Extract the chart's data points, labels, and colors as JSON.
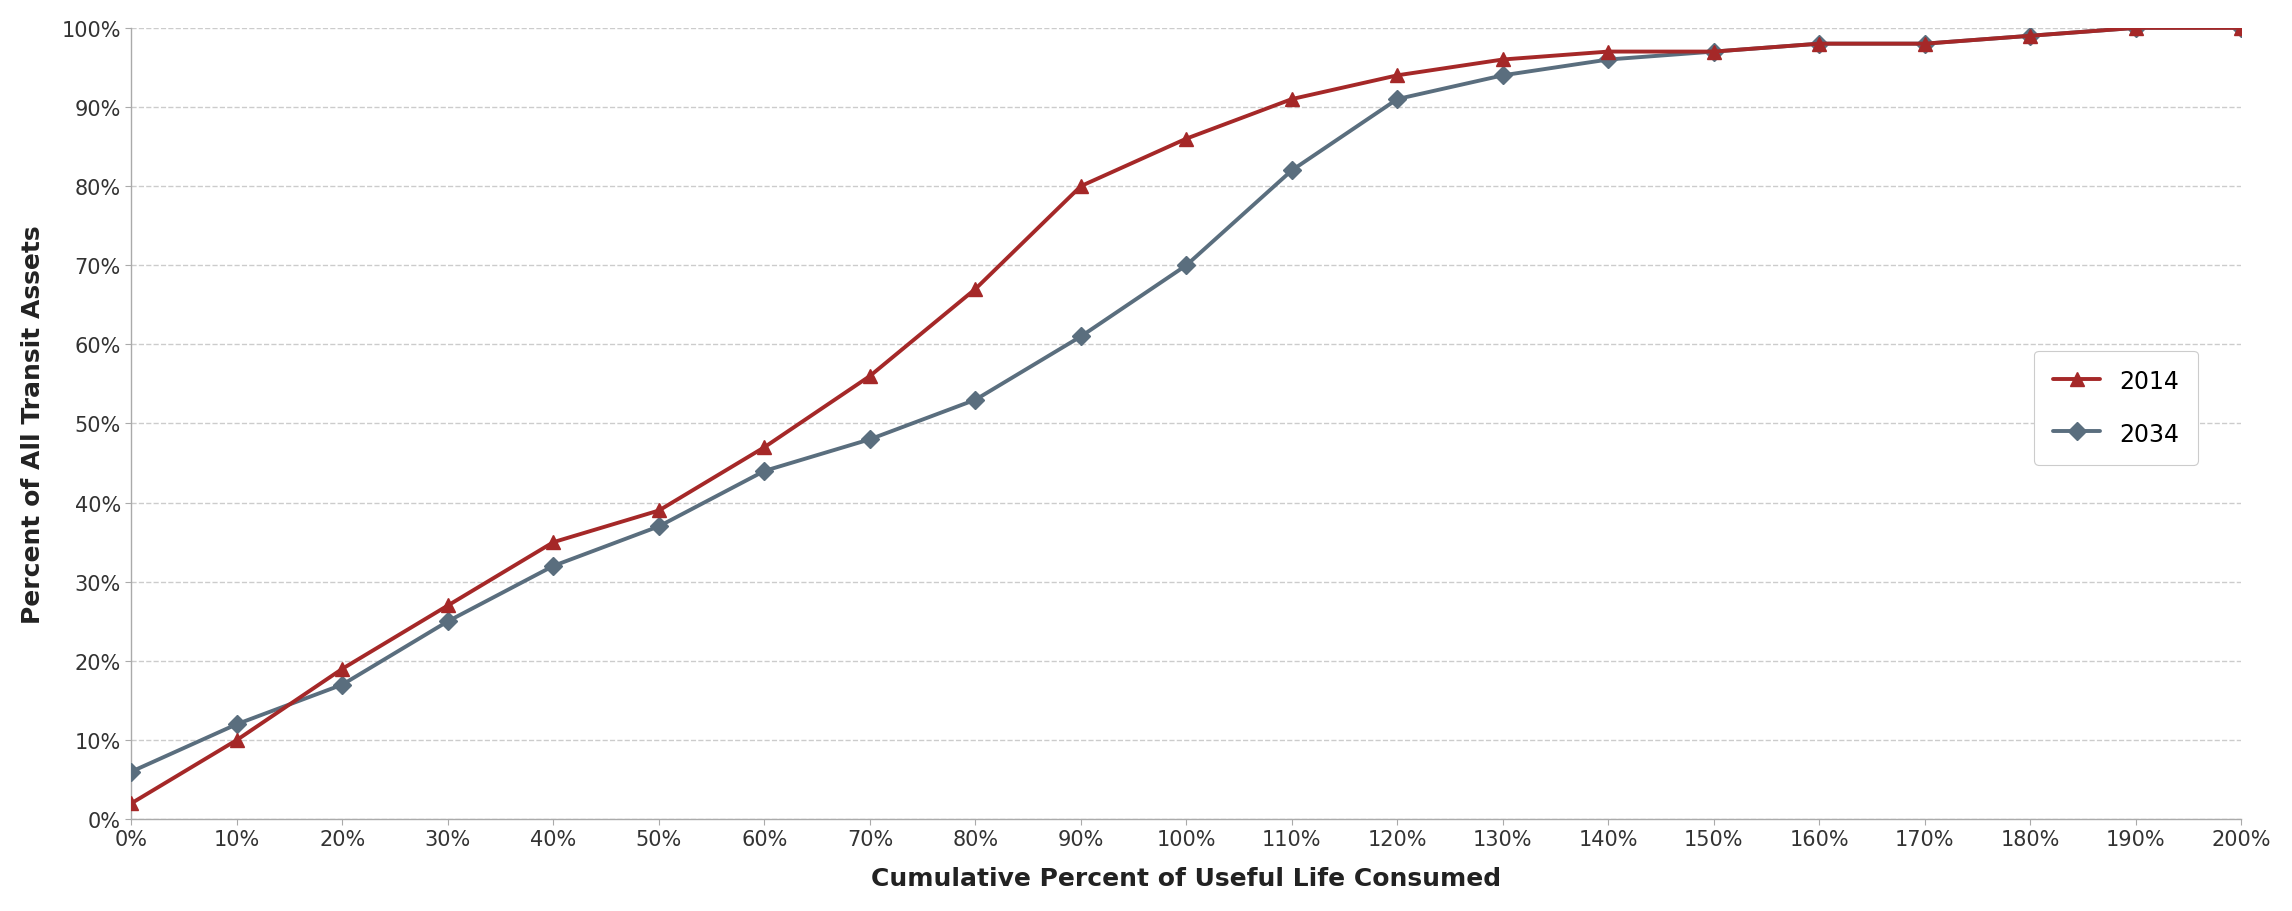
{
  "x_2014": [
    0,
    10,
    20,
    30,
    40,
    50,
    60,
    70,
    80,
    90,
    100,
    110,
    120,
    130,
    140,
    150,
    160,
    170,
    180,
    190,
    200
  ],
  "y_2014": [
    2,
    10,
    19,
    27,
    35,
    39,
    47,
    56,
    67,
    80,
    86,
    91,
    94,
    96,
    97,
    97,
    98,
    98,
    99,
    100,
    100
  ],
  "x_2034": [
    0,
    10,
    20,
    30,
    40,
    50,
    60,
    70,
    80,
    90,
    100,
    110,
    120,
    130,
    140,
    150,
    160,
    170,
    180,
    190,
    200
  ],
  "y_2034": [
    6,
    12,
    17,
    25,
    32,
    37,
    44,
    48,
    53,
    61,
    70,
    82,
    91,
    94,
    96,
    97,
    98,
    98,
    99,
    100,
    100
  ],
  "color_2014": "#a52828",
  "color_2034": "#5a6e7e",
  "xlabel": "Cumulative Percent of Useful Life Consumed",
  "ylabel": "Percent of All Transit Assets",
  "legend_2014": "2014",
  "legend_2034": "2034",
  "xlim": [
    0,
    200
  ],
  "ylim": [
    0,
    100
  ],
  "xticks": [
    0,
    10,
    20,
    30,
    40,
    50,
    60,
    70,
    80,
    90,
    100,
    110,
    120,
    130,
    140,
    150,
    160,
    170,
    180,
    190,
    200
  ],
  "xtick_labels": [
    "0%",
    "10%",
    "20%",
    "30%",
    "40%",
    "50%",
    "60%",
    "70%",
    "80%",
    "90%",
    "100%",
    "110%",
    "120%",
    "130%",
    "140%",
    "150%",
    "160%",
    "170%",
    "180%",
    "190%",
    "200%"
  ],
  "yticks": [
    0,
    10,
    20,
    30,
    40,
    50,
    60,
    70,
    80,
    90,
    100
  ],
  "ytick_labels": [
    "0%",
    "10%",
    "20%",
    "30%",
    "40%",
    "50%",
    "60%",
    "70%",
    "80%",
    "90%",
    "100%"
  ],
  "background_color": "#ffffff",
  "grid_color": "#cccccc",
  "linewidth": 2.8,
  "markersize_2014": 10,
  "markersize_2034": 9,
  "tick_fontsize": 15,
  "label_fontsize": 18,
  "legend_fontsize": 17
}
